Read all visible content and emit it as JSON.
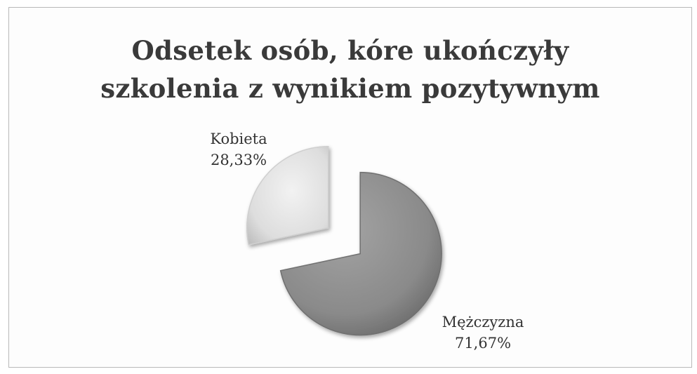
{
  "chart_data": {
    "type": "pie",
    "title_lines": [
      "Odsetek osób, kóre ukończyły",
      "szkolenia z wynikiem pozytywnym"
    ],
    "exploded": true,
    "style": "3d-shaded",
    "slices": [
      {
        "label": "Kobieta",
        "value": 28.33,
        "value_text": "28,33%",
        "color": "#e0e0e0"
      },
      {
        "label": "Mężczyzna",
        "value": 71.67,
        "value_text": "71,67%",
        "color": "#8e8e8e"
      }
    ]
  }
}
